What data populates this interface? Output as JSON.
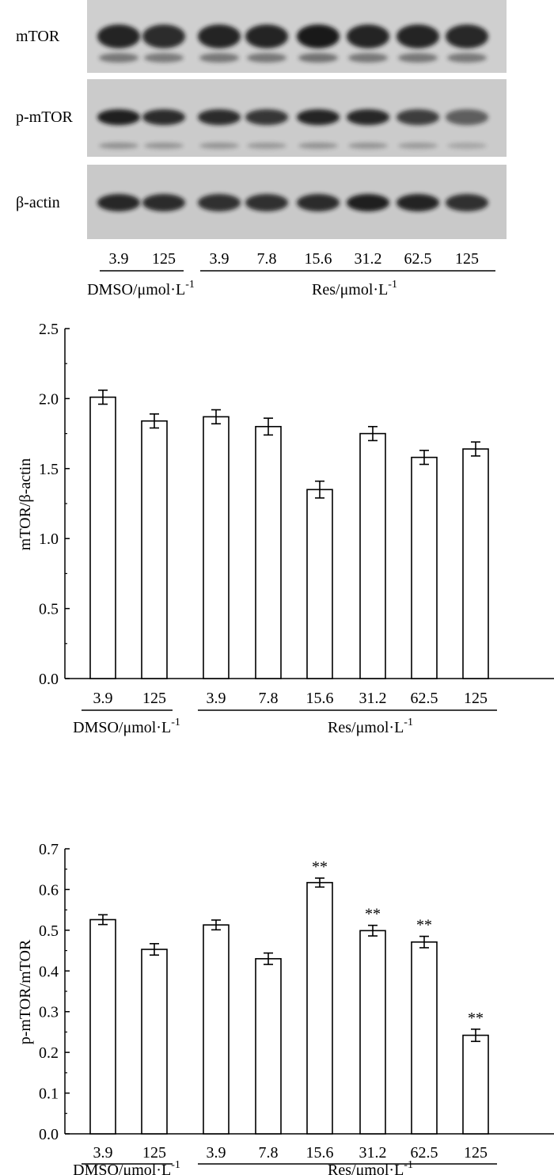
{
  "western_blot": {
    "rows": [
      {
        "label": "mTOR",
        "intensity": [
          0.92,
          0.88,
          0.92,
          0.92,
          0.98,
          0.92,
          0.92,
          0.9
        ]
      },
      {
        "label": "p-mTOR",
        "intensity": [
          0.95,
          0.88,
          0.88,
          0.82,
          0.92,
          0.9,
          0.78,
          0.6
        ]
      },
      {
        "label": "β-actin",
        "intensity": [
          0.9,
          0.88,
          0.85,
          0.85,
          0.88,
          0.95,
          0.92,
          0.85
        ]
      }
    ],
    "lanes": [
      "3.9",
      "125",
      "3.9",
      "7.8",
      "15.6",
      "31.2",
      "62.5",
      "125"
    ],
    "groups": [
      {
        "label": "DMSO/μmol·L",
        "sup": "-1"
      },
      {
        "label": "Res/μmol·L",
        "sup": "-1"
      }
    ]
  },
  "chart_data": [
    {
      "type": "bar",
      "ylabel": "mTOR/β-actin",
      "ylim": [
        0,
        2.5
      ],
      "yticks": [
        "0.0",
        "0.5",
        "1.0",
        "1.5",
        "2.0",
        "2.5"
      ],
      "categories": [
        "3.9",
        "125",
        "3.9",
        "7.8",
        "15.6",
        "31.2",
        "62.5",
        "125"
      ],
      "values": [
        2.01,
        1.84,
        1.87,
        1.8,
        1.35,
        1.75,
        1.58,
        1.64
      ],
      "errors": [
        0.05,
        0.05,
        0.05,
        0.06,
        0.06,
        0.05,
        0.05,
        0.05
      ],
      "annotations": [
        "",
        "",
        "",
        "",
        "",
        "",
        "",
        ""
      ],
      "groups": [
        {
          "label": "DMSO/μmol·L",
          "sup": "-1"
        },
        {
          "label": "Res/μmol·L",
          "sup": "-1"
        }
      ]
    },
    {
      "type": "bar",
      "ylabel": "p-mTOR/mTOR",
      "ylim": [
        0,
        0.7
      ],
      "yticks": [
        "0.0",
        "0.1",
        "0.2",
        "0.3",
        "0.4",
        "0.5",
        "0.6",
        "0.7"
      ],
      "categories": [
        "3.9",
        "125",
        "3.9",
        "7.8",
        "15.6",
        "31.2",
        "62.5",
        "125"
      ],
      "values": [
        0.526,
        0.453,
        0.513,
        0.43,
        0.617,
        0.499,
        0.471,
        0.242
      ],
      "errors": [
        0.012,
        0.014,
        0.012,
        0.014,
        0.011,
        0.013,
        0.014,
        0.015
      ],
      "annotations": [
        "",
        "",
        "",
        "",
        "**",
        "**",
        "**",
        "**"
      ],
      "groups": [
        {
          "label": "DMSO/μmol·L",
          "sup": "-1"
        },
        {
          "label": "Res/μmol·L",
          "sup": "-1"
        }
      ]
    }
  ]
}
